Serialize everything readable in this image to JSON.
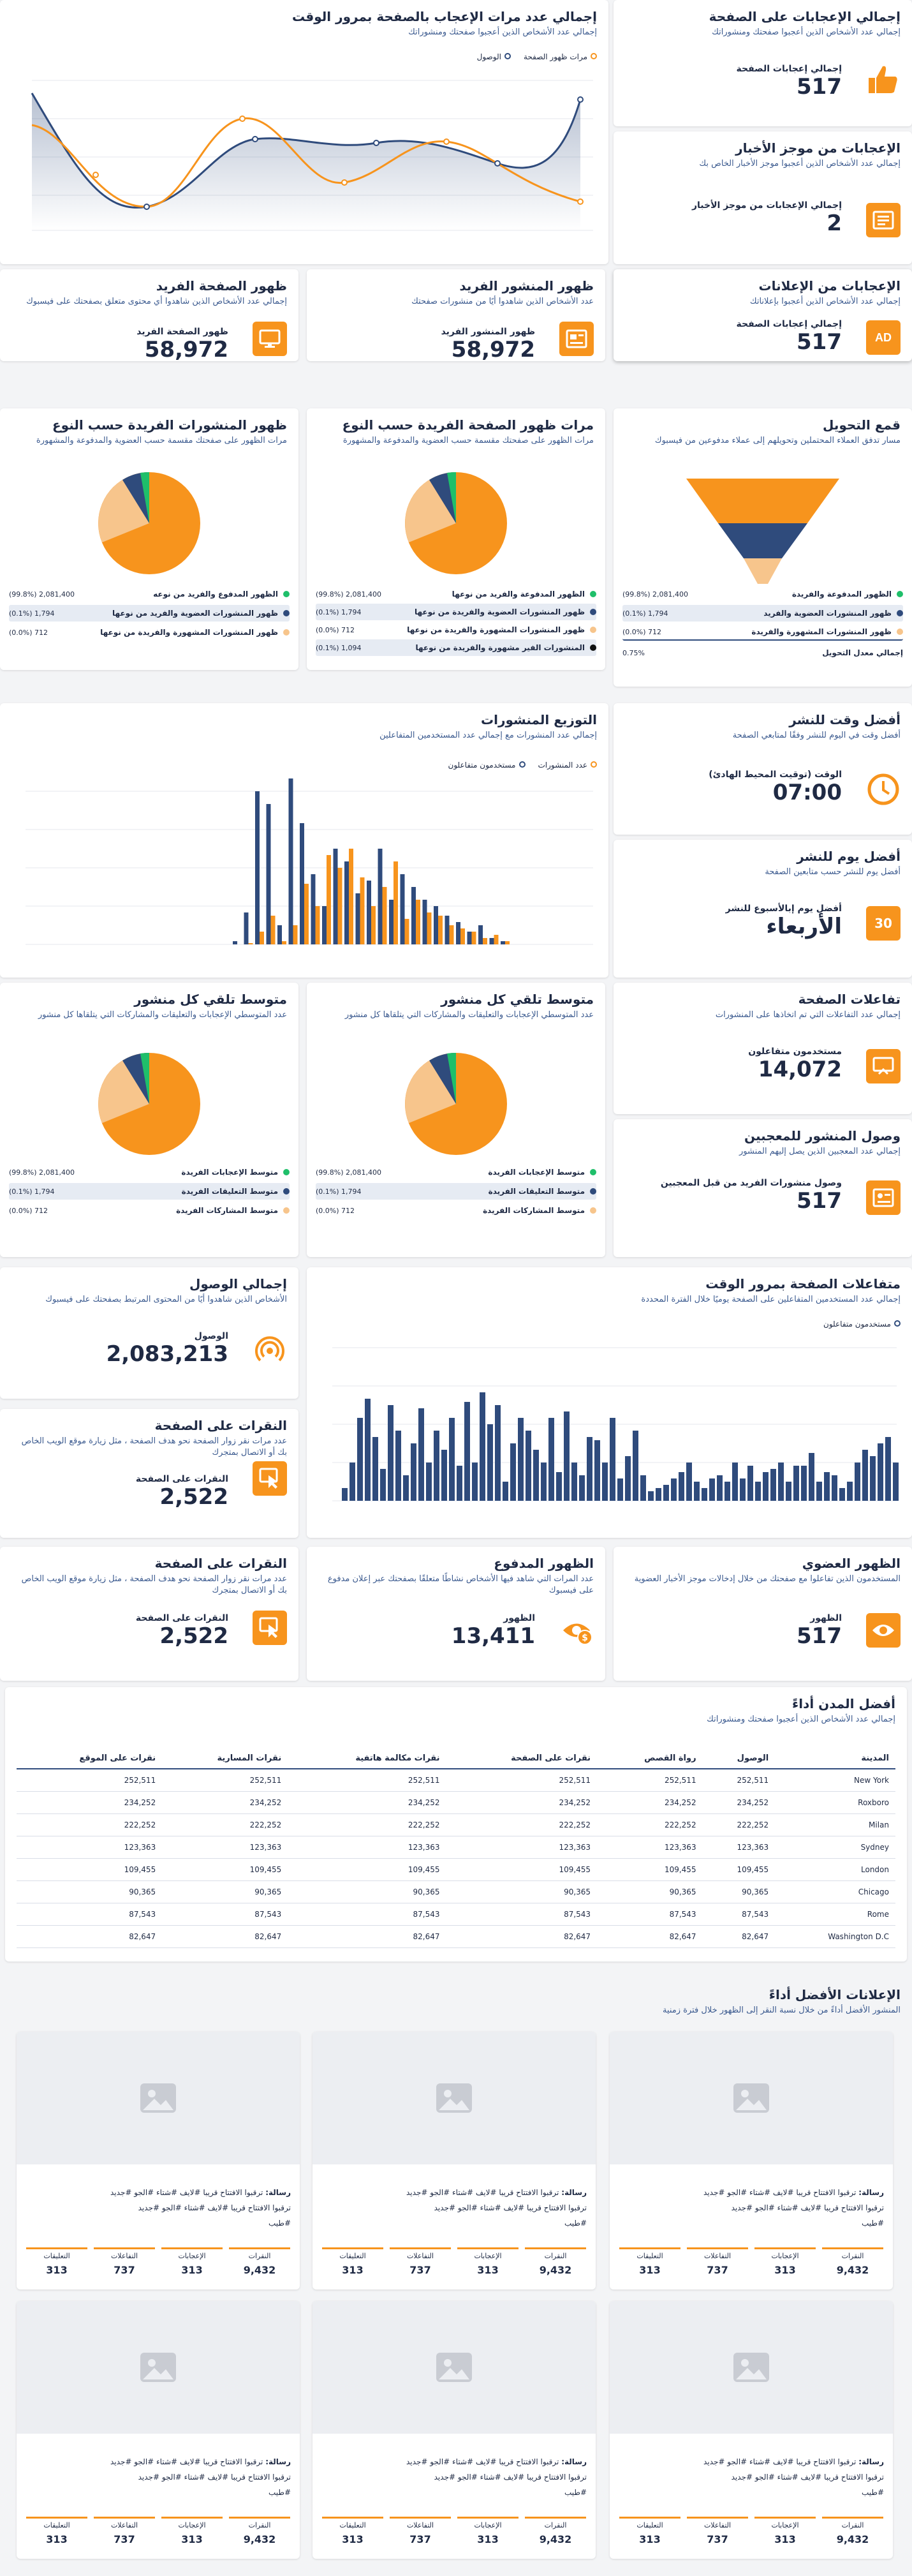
{
  "colors": {
    "orange": "#f7941d",
    "navy": "#2f4b7c",
    "light": "#f7c58c",
    "green": "#1fbf6a",
    "black": "#111111"
  },
  "page_likes": {
    "title": "إجمالي الإعجابات على الصفحة",
    "subtitle": "إجمالي عدد الأشخاص الذين أعجبوا صفحتك ومنشوراتك",
    "label": "إجمالي إعجابات الصفحة",
    "value": "517",
    "icon": "thumbs-up-icon"
  },
  "news_likes": {
    "title": "الإعجابات من موجز الأخبار",
    "subtitle": "إجمالي عدد الأشخاص الذين أعجبوا موجز الأخبار الخاص بك",
    "label": "إجمالي الإعجابات من موجز الأخبار",
    "value": "2",
    "icon": "newsfeed-icon"
  },
  "ads_likes": {
    "title": "الإعجابات من الإعلانات",
    "subtitle": "إجمالي عدد الأشخاص الذين أعجبوا بإعلاناتك",
    "label": "إجمالي إعجابات الصفحة",
    "value": "517",
    "icon": "ad-icon"
  },
  "likes_time": {
    "title": "إجمالي عدد مرات الإعجاب بالصفحة بمرور الوقت",
    "subtitle": "إجمالي عدد الأشخاص الذين أعجبوا صفحتك ومنشوراتك",
    "legend": [
      "مرات ظهور الصفحة",
      "الوصول"
    ]
  },
  "unique_post_imp": {
    "title": "ظهور المنشور الفريد",
    "subtitle": "عدد الأشخاص الذين شاهدوا أيًا من منشورات صفحتك",
    "label": "ظهور المنشور الفريد",
    "value": "58,972",
    "icon": "post-icon"
  },
  "unique_page_imp": {
    "title": "ظهور الصفحة الفريد",
    "subtitle": "إجمالي عدد الأشخاص الذين شاهدوا أي محتوى متعلق بصفحتك على فيسبوك",
    "label": "ظهور الصفحة الفريد",
    "value": "58,972",
    "icon": "monitor-icon"
  },
  "funnel": {
    "title": "قمع التحويل",
    "subtitle": "مسار تدفق العملاء المحتملين وتحويلهم إلى عملاء مدفوعين من فيسبوك",
    "rows": [
      {
        "label": "الظهور المدفوعة والفريدة",
        "value": "(99.8%) 2,081,400"
      },
      {
        "label": "ظهور المنشورات العضوية والفريد",
        "value": "(0.1%) 1,794"
      },
      {
        "label": "ظهور المنشورات المشهورة والفريدة",
        "value": "(0.0%) 712"
      },
      {
        "label": "إجمالي معدل التحويل",
        "value": "0.75%"
      }
    ]
  },
  "page_imp_type": {
    "title": "مرات ظهور الصفحة الفريدة حسب النوع",
    "subtitle": "مرات الظهور على صفحتك مقسمة حسب العضوية والمدفوعة والمشهورة",
    "rows": [
      {
        "label": "الظهور المدفوعة والفريد من نوعها",
        "value": "(99.8%) 2,081,400"
      },
      {
        "label": "ظهور المنشورات العضوية والفريدة من نوعها",
        "value": "(0.1%) 1,794"
      },
      {
        "label": "ظهور المنشورات المشهورة والفريدة من نوعها",
        "value": "(0.0%) 712"
      },
      {
        "label": "المنشورات الفير مشهورة والفريدة من نوعها",
        "value": "(0.1%) 1,094"
      }
    ]
  },
  "post_imp_type": {
    "title": "ظهور المنشورات الفريدة حسب النوع",
    "subtitle": "مرات الظهور على صفحتك مقسمة حسب العضوية والمدفوعة والمشهورة",
    "rows": [
      {
        "label": "الظهور المدفوع والفريد من نوعه",
        "value": "(99.8%) 2,081,400"
      },
      {
        "label": "ظهور المنشورات العضوية والفريد من نوعها",
        "value": "(0.1%) 1,794"
      },
      {
        "label": "ظهور المنشورات المشهورة والفريدة من نوعها",
        "value": "(0.0%) 712"
      }
    ]
  },
  "distribution": {
    "title": "التوزيع المنشورات",
    "subtitle": "إجمالي عدد المنشورات مع إجمالي عدد المستخدمين المتفاعلين",
    "legend": [
      "عدد المنشورات",
      "مستخدمون متفاعلون"
    ]
  },
  "best_time": {
    "title": "أفضل وقت للنشر",
    "subtitle": "أفضل وقت في اليوم للنشر وفقًا لمتابعي الصفحة",
    "label": "الوقت (توقيت المحيط الهادئ)",
    "value": "07:00",
    "icon": "clock-icon"
  },
  "best_day": {
    "title": "أفضل يوم للنشر",
    "subtitle": "أفضل يوم للنشر حسب متابعين الصفحة",
    "label": "أفضل يوم إبالأسبوع للنشر",
    "value": "الأربعاء",
    "icon": "calendar-icon"
  },
  "avg_post": {
    "title": "متوسط تلقي كل منشور",
    "subtitle": "عدد المتوسطي الإعجابات والتعليقات والمشاركات التي يتلقاها كل منشور",
    "rows": [
      {
        "label": "متوسط الإعجابات الفريدة",
        "value": "(99.8%) 2,081,400"
      },
      {
        "label": "متوسط التعليقات الفريدة",
        "value": "(0.1%) 1,794"
      },
      {
        "label": "متوسط المشاركات الفريدة",
        "value": "(0.0%) 712"
      }
    ]
  },
  "avg_post2": {
    "title": "متوسط تلقي كل منشور",
    "subtitle": "عدد المتوسطي الإعجابات والتعليقات والمشاركات التي يتلقاها كل منشور",
    "rows": [
      {
        "label": "متوسط الإعجابات الفريدة",
        "value": "(99.8%) 2,081,400"
      },
      {
        "label": "متوسط التعليقات الفريدة",
        "value": "(0.1%) 1,794"
      },
      {
        "label": "متوسط المشاركات الفريدة",
        "value": "(0.0%) 712"
      }
    ]
  },
  "page_engage": {
    "title": "تفاعلات الصفحة",
    "subtitle": "إجمالي عدد التفاعلات التي تم اتخاذها على المنشورات",
    "label": "مستخدمون متفاعلون",
    "value": "14,072",
    "icon": "engage-icon"
  },
  "fans_reach": {
    "title": "وصول المنشور للمعجبين",
    "subtitle": "إجمالي عدد المعجبين الذين يصل إليهم المنشور",
    "label": "وصول منشورات الفريد من قبل المعجبين",
    "value": "517",
    "icon": "fans-icon"
  },
  "total_reach": {
    "title": "إجمالي الوصول",
    "subtitle": "الأشخاص الذين شاهدوا أيًا من المحتوى المرتبط بصفحتك على فيسبوك",
    "label": "الوصول",
    "value": "2,083,213",
    "icon": "broadcast-icon"
  },
  "engage_time": {
    "title": "متفاعلات الصفحة بمرور الوقت",
    "subtitle": "إجمالي عدد المستخدمين المتفاعلين على الصفحة يوميًا خلال الفترة المحددة",
    "legend": "مستخدمون متفاعلون"
  },
  "clicks1": {
    "title": "النقرات على الصفحة",
    "subtitle": "عدد مرات نقر زوار الصفحة نحو هدف الصفحة ، مثل زيارة موقع الويب الخاص بك أو الاتصال بمتجرك",
    "label": "النقرات على الصفحة",
    "value": "2,522",
    "icon": "click-icon"
  },
  "organic": {
    "title": "الظهور العضوي",
    "subtitle": "المستخدمون الذين تفاعلوا مع صفحتك من خلال إدخالات موجز الأخبار العضوية",
    "label": "الظهور",
    "value": "517",
    "icon": "eye-icon"
  },
  "paid": {
    "title": "الظهور المدفوع",
    "subtitle": "عدد المرات التي شاهد فيها الأشخاص نشاطًا متعلقًا بصفحتك عبر إعلان مدفوع على فيسبوك",
    "label": "الظهور",
    "value": "13,411",
    "icon": "paid-icon"
  },
  "clicks2": {
    "title": "النقرات على الصفحة",
    "subtitle": "عدد مرات نقر زوار الصفحة نحو هدف الصفحة ، مثل زيارة موقع الويب الخاص بك أو الاتصال بمتجرك",
    "label": "النقرات على الصفحة",
    "value": "2,522",
    "icon": "click-icon"
  },
  "cities": {
    "title": "أفضل المدن أداءً",
    "subtitle": "إجمالي عدد الأشخاص الذين أعجبوا صفحتك ومنشوراتك",
    "headers": [
      "المدينة",
      "الوصول",
      "رواة القصص",
      "نقرات على الصفحة",
      "نقرات مكالمة هاتفية",
      "نقرات المسارية",
      "نقرات على الموقع"
    ],
    "rows": [
      [
        "New York",
        "252,511",
        "252,511",
        "252,511",
        "252,511",
        "252,511",
        "252,511"
      ],
      [
        "Roxboro",
        "234,252",
        "234,252",
        "234,252",
        "234,252",
        "234,252",
        "234,252"
      ],
      [
        "Milan",
        "222,252",
        "222,252",
        "222,252",
        "222,252",
        "222,252",
        "222,252"
      ],
      [
        "Sydney",
        "123,363",
        "123,363",
        "123,363",
        "123,363",
        "123,363",
        "123,363"
      ],
      [
        "London",
        "109,455",
        "109,455",
        "109,455",
        "109,455",
        "109,455",
        "109,455"
      ],
      [
        "Chicago",
        "90,365",
        "90,365",
        "90,365",
        "90,365",
        "90,365",
        "90,365"
      ],
      [
        "Rome",
        "87,543",
        "87,543",
        "87,543",
        "87,543",
        "87,543",
        "87,543"
      ],
      [
        "Washington D.C",
        "82,647",
        "82,647",
        "82,647",
        "82,647",
        "82,647",
        "82,647"
      ]
    ]
  },
  "ads": {
    "title": "الإعلانات الأفضل أداءً",
    "subtitle": "المنشور الأفضل أداءً من خلال نسبة النقر إلى الظهور خلال فترة زمنية",
    "msg_label": "رسالة:",
    "msg_line1": "ترقبوا الافتتاح قريبا #لايف #شتاء #الجو #جديد",
    "msg_line2": "ترقبوا الافتتاح قريبا #لايف #شتاء #الجو #جديد",
    "msg_line3": "#طيب",
    "stat_labels": [
      "النقرات",
      "الإعجابات",
      "التفاعلات",
      "التعليقات"
    ],
    "stat_values": [
      "9,432",
      "313",
      "737",
      "313"
    ]
  }
}
